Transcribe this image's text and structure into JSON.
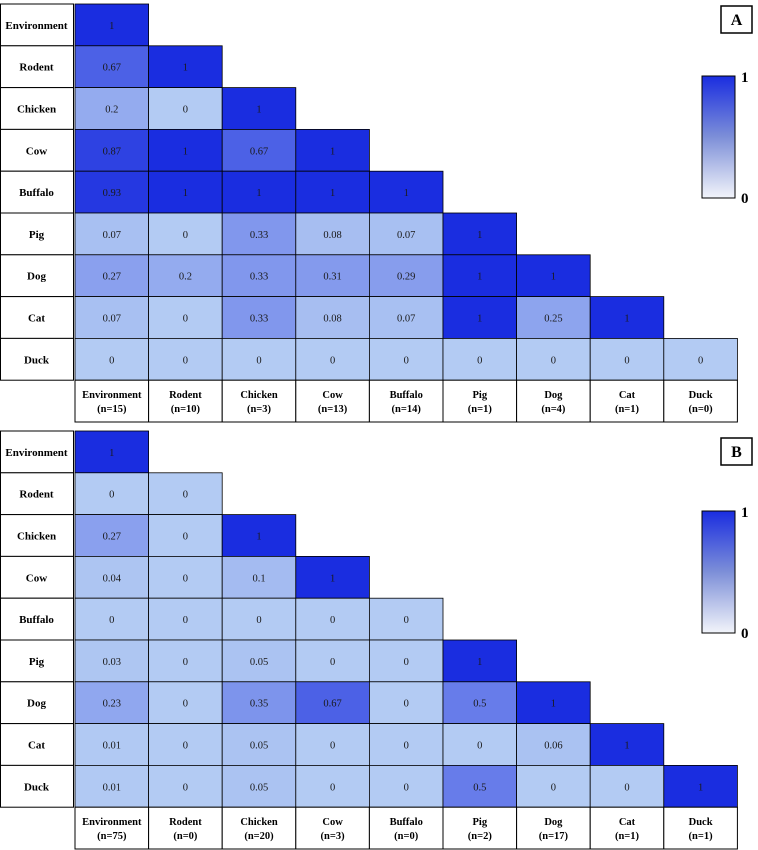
{
  "chart_data": [
    {
      "type": "heatmap",
      "panel_label": "A",
      "rows": [
        "Environment",
        "Rodent",
        "Chicken",
        "Cow",
        "Buffalo",
        "Pig",
        "Dog",
        "Cat",
        "Duck"
      ],
      "columns": [
        {
          "name": "Environment",
          "n": "(n=15)"
        },
        {
          "name": "Rodent",
          "n": "(n=10)"
        },
        {
          "name": "Chicken",
          "n": "(n=3)"
        },
        {
          "name": "Cow",
          "n": "(n=13)"
        },
        {
          "name": "Buffalo",
          "n": "(n=14)"
        },
        {
          "name": "Pig",
          "n": "(n=1)"
        },
        {
          "name": "Dog",
          "n": "(n=4)"
        },
        {
          "name": "Cat",
          "n": "(n=1)"
        },
        {
          "name": "Duck",
          "n": "(n=0)"
        }
      ],
      "values": [
        [
          1
        ],
        [
          0.67,
          1
        ],
        [
          0.2,
          0,
          1
        ],
        [
          0.87,
          1,
          0.67,
          1
        ],
        [
          0.93,
          1,
          1,
          1,
          1
        ],
        [
          0.07,
          0,
          0.33,
          0.08,
          0.07,
          1
        ],
        [
          0.27,
          0.2,
          0.33,
          0.31,
          0.29,
          1,
          1
        ],
        [
          0.07,
          0,
          0.33,
          0.08,
          0.07,
          1,
          0.25,
          1
        ],
        [
          0,
          0,
          0,
          0,
          0,
          0,
          0,
          0,
          0
        ]
      ],
      "color_scale": {
        "min": 0,
        "max": 1,
        "min_label": "0",
        "max_label": "1",
        "min_color": "#b3cbf3",
        "max_color": "#1a2de0"
      }
    },
    {
      "type": "heatmap",
      "panel_label": "B",
      "rows": [
        "Environment",
        "Rodent",
        "Chicken",
        "Cow",
        "Buffalo",
        "Pig",
        "Dog",
        "Cat",
        "Duck"
      ],
      "columns": [
        {
          "name": "Environment",
          "n": "(n=75)"
        },
        {
          "name": "Rodent",
          "n": "(n=0)"
        },
        {
          "name": "Chicken",
          "n": "(n=20)"
        },
        {
          "name": "Cow",
          "n": "(n=3)"
        },
        {
          "name": "Buffalo",
          "n": "(n=0)"
        },
        {
          "name": "Pig",
          "n": "(n=2)"
        },
        {
          "name": "Dog",
          "n": "(n=17)"
        },
        {
          "name": "Cat",
          "n": "(n=1)"
        },
        {
          "name": "Duck",
          "n": "(n=1)"
        }
      ],
      "values": [
        [
          1
        ],
        [
          0,
          0
        ],
        [
          0.27,
          0,
          1
        ],
        [
          0.04,
          0,
          0.1,
          1
        ],
        [
          0,
          0,
          0,
          0,
          0
        ],
        [
          0.03,
          0,
          0.05,
          0,
          0,
          1
        ],
        [
          0.23,
          0,
          0.35,
          0.67,
          0,
          0.5,
          1
        ],
        [
          0.01,
          0,
          0.05,
          0,
          0,
          0,
          0.06,
          1
        ],
        [
          0.01,
          0,
          0.05,
          0,
          0,
          0.5,
          0,
          0,
          1
        ]
      ],
      "color_scale": {
        "min": 0,
        "max": 1,
        "min_label": "0",
        "max_label": "1",
        "min_color": "#b3cbf3",
        "max_color": "#1a2de0"
      }
    }
  ]
}
